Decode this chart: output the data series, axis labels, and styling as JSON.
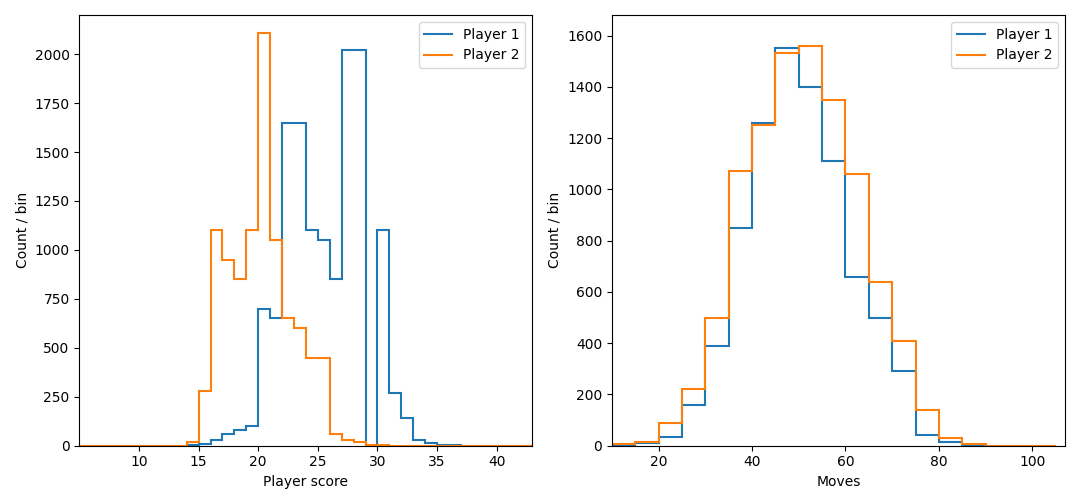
{
  "score_bin_edges": [
    5,
    6,
    7,
    8,
    9,
    10,
    11,
    12,
    13,
    14,
    15,
    16,
    17,
    18,
    19,
    20,
    21,
    22,
    23,
    24,
    25,
    26,
    27,
    28,
    29,
    30,
    31,
    32,
    33,
    34,
    35,
    36,
    37,
    38,
    39,
    40,
    41,
    42,
    43
  ],
  "score_p1_counts": [
    0,
    0,
    0,
    0,
    0,
    0,
    0,
    0,
    0,
    5,
    10,
    30,
    60,
    80,
    100,
    700,
    650,
    1650,
    1650,
    1100,
    1050,
    850,
    2020,
    2020,
    0,
    1100,
    270,
    140,
    30,
    15,
    5,
    2,
    0,
    0,
    0,
    0,
    0,
    0
  ],
  "score_p2_counts": [
    0,
    0,
    0,
    0,
    0,
    0,
    0,
    0,
    0,
    20,
    280,
    1100,
    950,
    850,
    1100,
    2110,
    1050,
    650,
    600,
    450,
    450,
    60,
    30,
    20,
    5,
    2,
    0,
    0,
    0,
    0,
    0,
    0,
    0,
    0,
    0,
    0,
    0,
    0
  ],
  "moves_bin_edges": [
    10,
    15,
    20,
    25,
    30,
    35,
    40,
    45,
    50,
    55,
    60,
    65,
    70,
    75,
    80,
    85,
    90,
    95,
    100,
    105
  ],
  "moves_p1_counts": [
    0,
    10,
    35,
    160,
    390,
    850,
    1260,
    1550,
    1400,
    1110,
    660,
    500,
    290,
    40,
    15,
    3,
    0,
    0,
    0
  ],
  "moves_p2_counts": [
    5,
    15,
    90,
    220,
    500,
    1070,
    1250,
    1530,
    1560,
    1350,
    1060,
    640,
    410,
    140,
    30,
    5,
    0,
    0,
    0
  ],
  "p1_color": "#1f77b4",
  "p2_color": "#ff7f0e",
  "legend_labels": [
    "Player 1",
    "Player 2"
  ],
  "score_xlabel": "Player score",
  "moves_xlabel": "Moves",
  "ylabel": "Count / bin",
  "score_xlim": [
    5,
    43
  ],
  "score_ylim": [
    0,
    2200
  ],
  "moves_xlim": [
    10,
    107
  ],
  "moves_ylim": [
    0,
    1680
  ],
  "score_xticks": [
    10,
    15,
    20,
    25,
    30,
    35,
    40
  ],
  "moves_xticks": [
    20,
    40,
    60,
    80,
    100
  ]
}
